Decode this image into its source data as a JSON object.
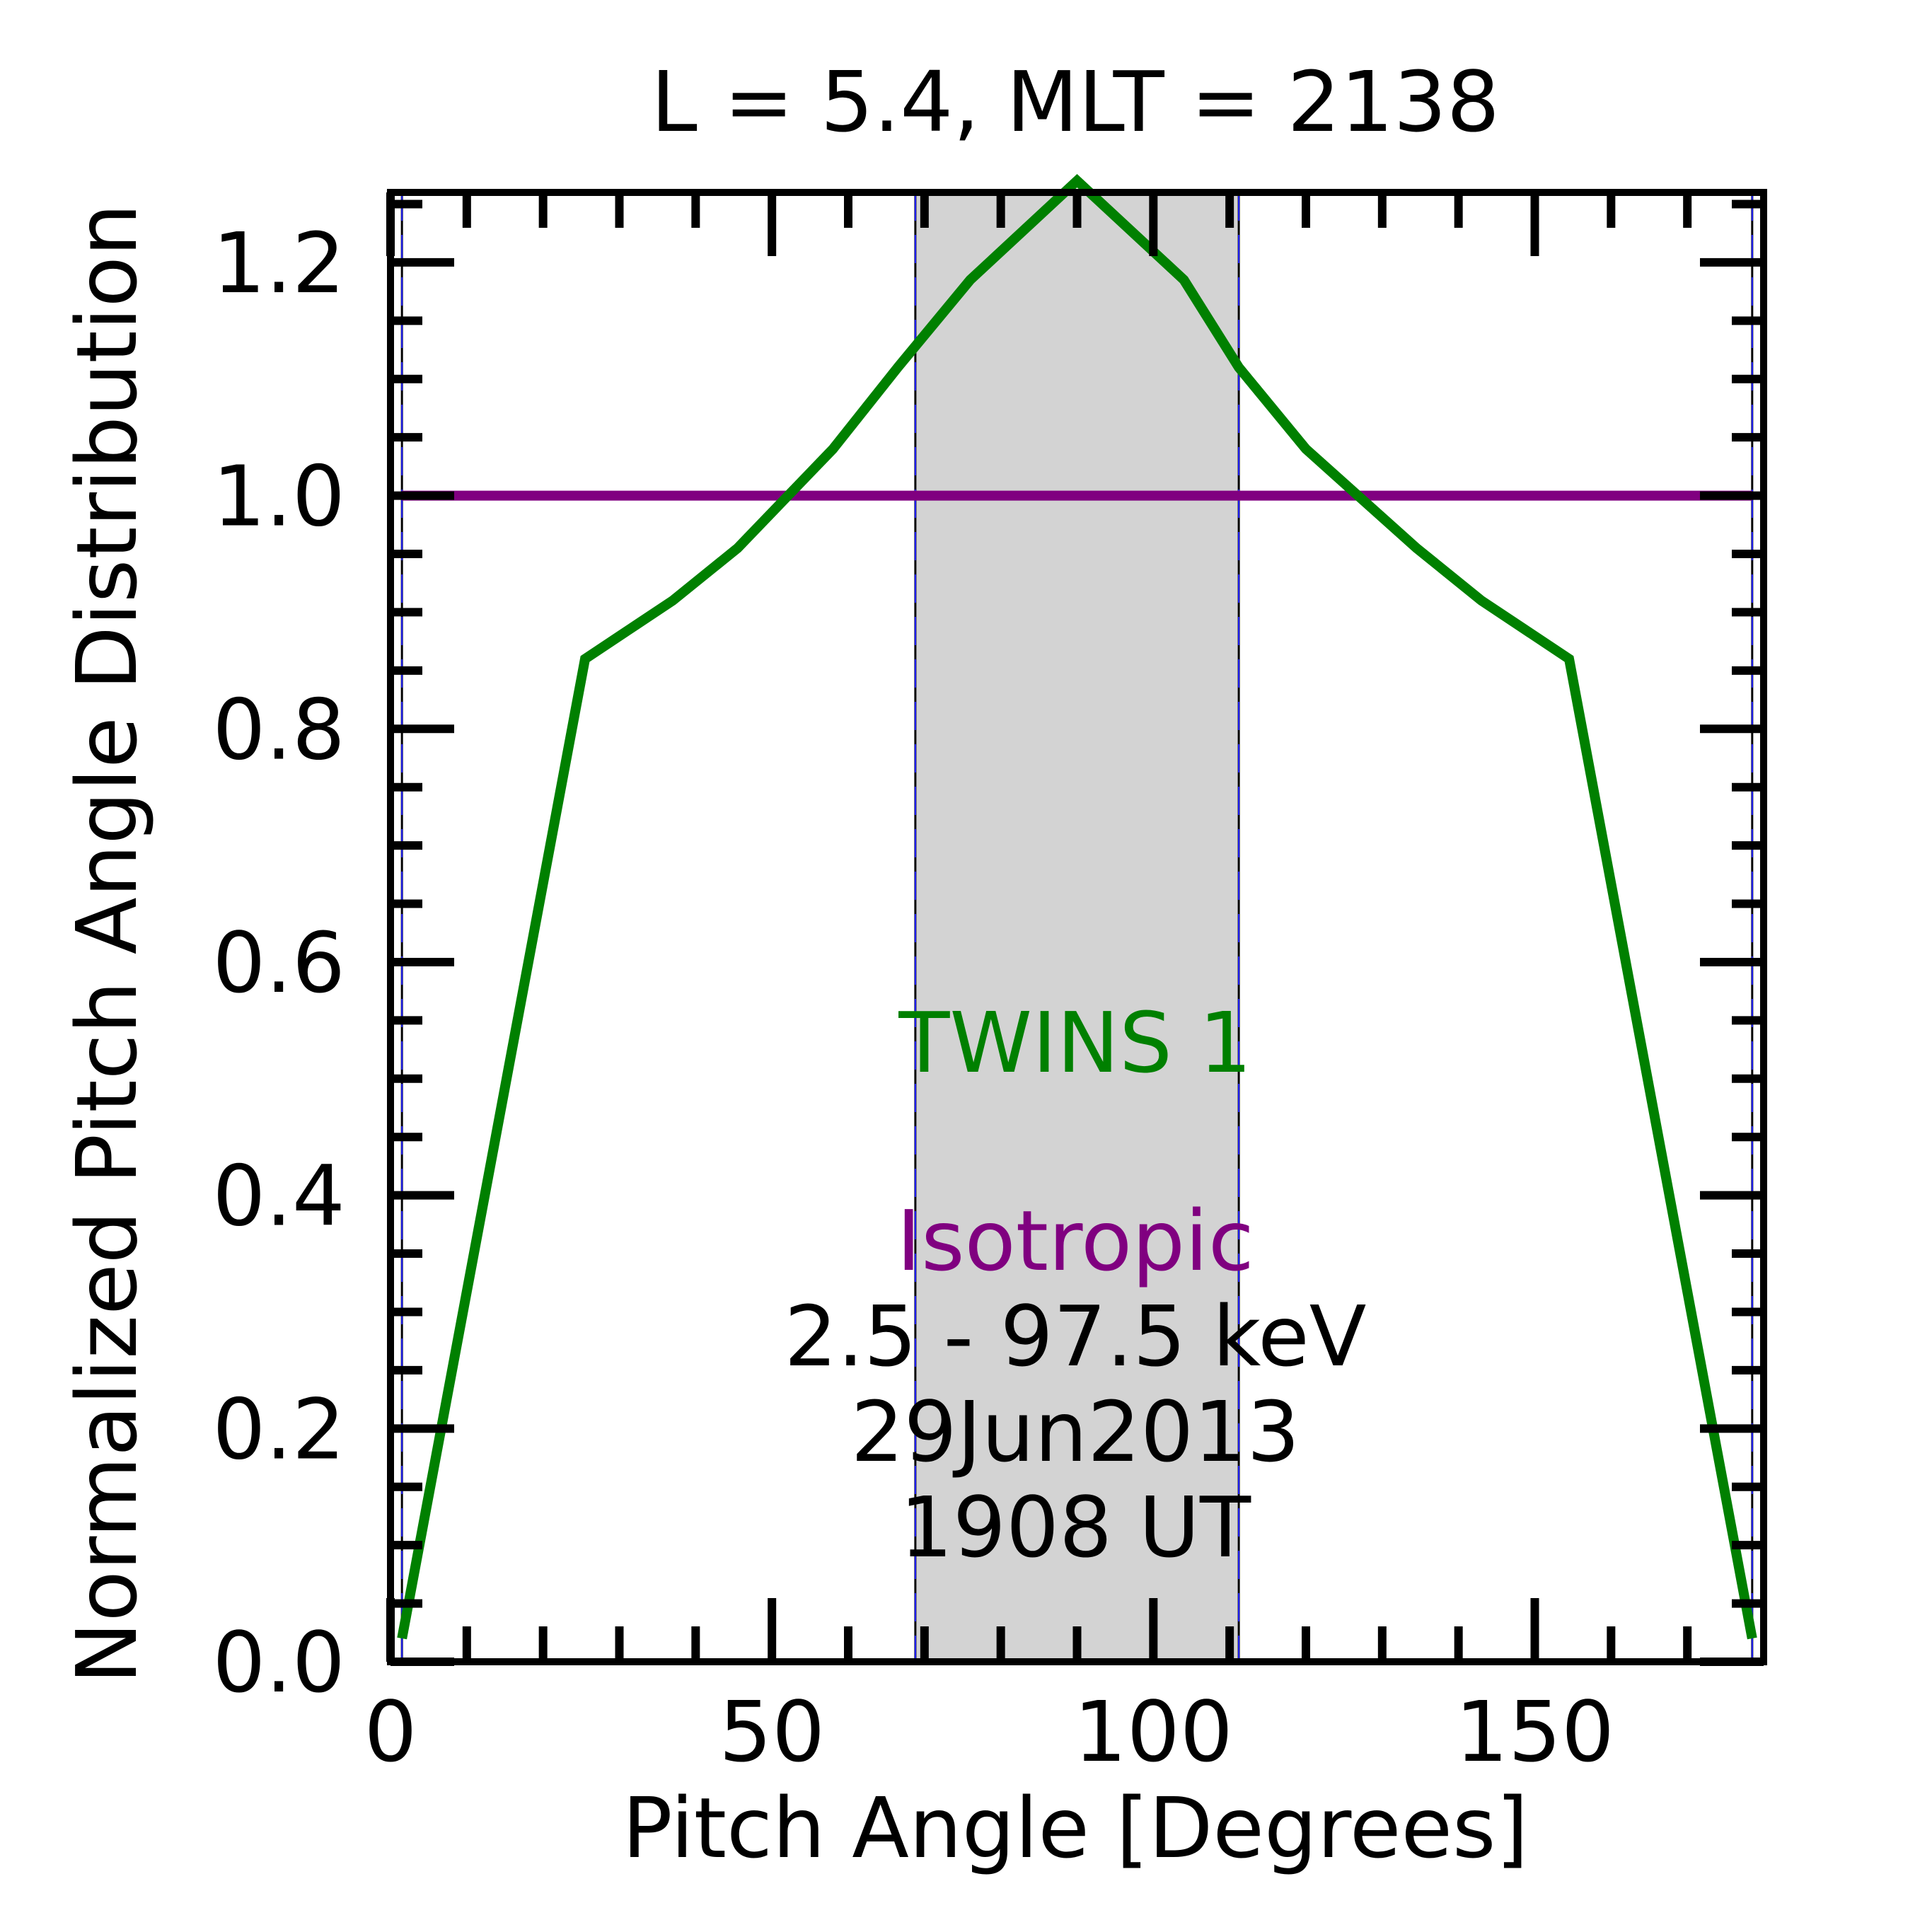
{
  "chart_data": {
    "type": "line",
    "title": "L =  5.4, MLT = 2138",
    "xlabel": "Pitch Angle [Degrees]",
    "ylabel": "Normalized Pitch Angle Distribution",
    "xlim": [
      0,
      180
    ],
    "ylim": [
      0,
      1.26
    ],
    "xticks": [
      0,
      50,
      100,
      150
    ],
    "xtick_labels": [
      "0",
      "50",
      "100",
      "150"
    ],
    "yticks": [
      0,
      0.2,
      0.4,
      0.6,
      0.8,
      1.0,
      1.2
    ],
    "ytick_labels": [
      "0.0",
      "0.2",
      "0.4",
      "0.6",
      "0.8",
      "1.0",
      "1.2"
    ],
    "grid": false,
    "shaded_band": {
      "x": [
        68.8,
        111.2
      ],
      "color": "#d3d3d3"
    },
    "vertical_lines": [
      1.5,
      68.8,
      111.2,
      178.5
    ],
    "series": [
      {
        "name": "TWINS 1",
        "color": "#008000",
        "x": [
          1.5,
          25.5,
          37,
          45.5,
          58,
          66.5,
          76,
          90,
          104,
          111.2,
          120,
          134.5,
          143,
          154.5,
          178.5
        ],
        "y": [
          0.02,
          0.86,
          0.91,
          0.955,
          1.04,
          1.11,
          1.185,
          1.27,
          1.185,
          1.11,
          1.04,
          0.955,
          0.91,
          0.86,
          0.02
        ]
      },
      {
        "name": "Isotropic",
        "color": "#800080",
        "x": [
          1.5,
          178.5
        ],
        "y": [
          1.0,
          1.0
        ]
      }
    ],
    "annotations": [
      "2.5 - 97.5 keV",
      "29Jun2013",
      "1908 UT"
    ]
  }
}
